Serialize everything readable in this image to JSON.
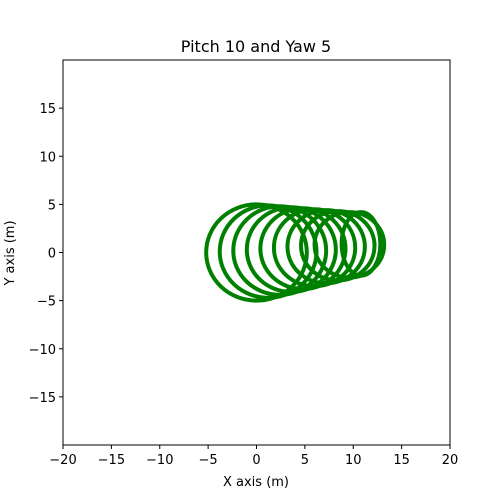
{
  "chart_data": {
    "type": "line",
    "title": "Pitch 10 and Yaw 5",
    "xlabel": "X axis (m)",
    "ylabel": "Y axis (m)",
    "xlim": [
      -20,
      20
    ],
    "ylim": [
      -20,
      20
    ],
    "x_ticks": [
      -20,
      -15,
      -10,
      -5,
      0,
      5,
      10,
      15,
      20
    ],
    "x_tick_labels": [
      "−20",
      "−15",
      "−10",
      "−5",
      "0",
      "5",
      "10",
      "15",
      "20"
    ],
    "y_ticks": [
      -15,
      -10,
      -5,
      0,
      5,
      10,
      15
    ],
    "y_tick_labels": [
      "−15",
      "−10",
      "−5",
      "0",
      "5",
      "10",
      "15"
    ],
    "grid": false,
    "line_color": "#008000",
    "series": [
      {
        "center": [
          0.0,
          0.0
        ],
        "rx": 5.2,
        "ry": 5.0
      },
      {
        "center": [
          1.2,
          0.1
        ],
        "rx": 5.0,
        "ry": 4.8
      },
      {
        "center": [
          2.4,
          0.2
        ],
        "rx": 4.8,
        "ry": 4.6
      },
      {
        "center": [
          3.6,
          0.3
        ],
        "rx": 4.6,
        "ry": 4.4
      },
      {
        "center": [
          4.8,
          0.4
        ],
        "rx": 4.4,
        "ry": 4.2
      },
      {
        "center": [
          6.0,
          0.5
        ],
        "rx": 4.2,
        "ry": 4.0
      },
      {
        "center": [
          7.2,
          0.6
        ],
        "rx": 4.0,
        "ry": 3.8
      },
      {
        "center": [
          8.4,
          0.7
        ],
        "rx": 3.8,
        "ry": 3.6
      },
      {
        "center": [
          9.6,
          0.8
        ],
        "rx": 3.6,
        "ry": 3.4
      },
      {
        "center": [
          10.8,
          0.9
        ],
        "rx": 2.0,
        "ry": 3.3
      }
    ]
  }
}
